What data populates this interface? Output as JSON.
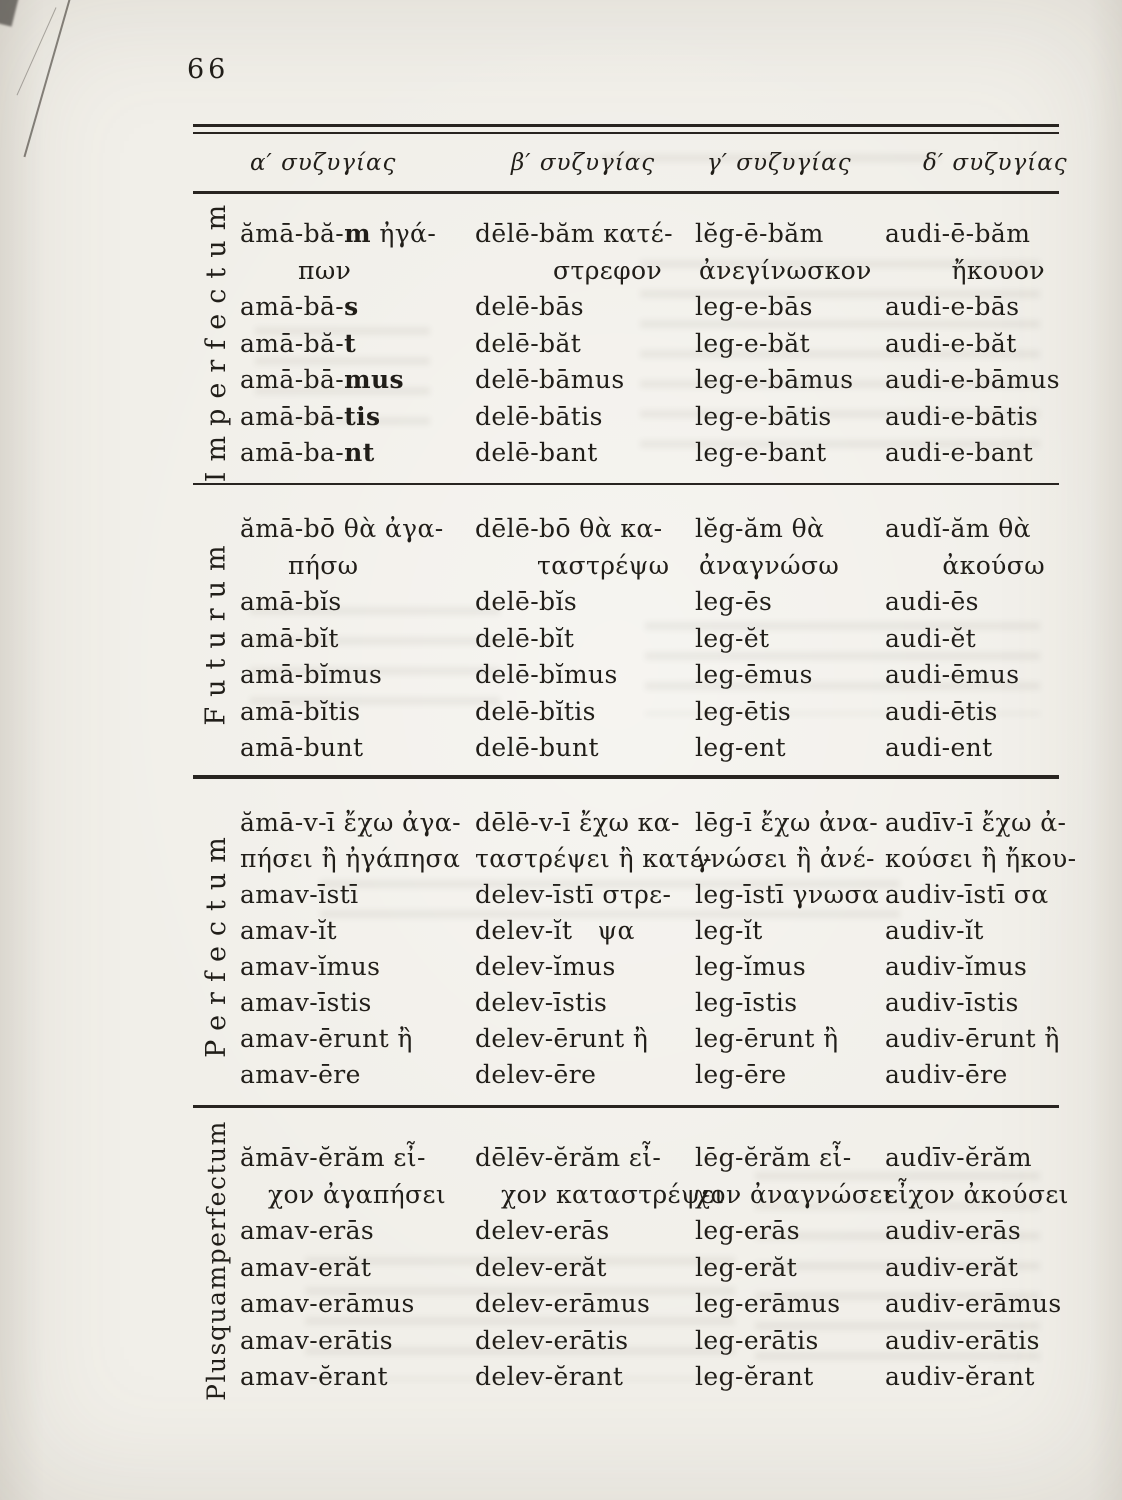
{
  "page": {
    "number": "66"
  },
  "colors": {
    "paper": "#f1efe9",
    "ink": "#211e19",
    "rule": "#282420"
  },
  "table": {
    "headers": [
      "α′ συζυγίας",
      "β′ συζυγίας",
      "γ′ συζυγίας",
      "δ′ συζυγίας"
    ],
    "sections": [
      {
        "label": "Imperfectum",
        "rows": [
          {
            "cells": [
              [
                "ămā-bă-**m** ἠγά-",
                "πων"
              ],
              [
                "dēlē-băm κατέ-",
                "στρεφον"
              ],
              [
                "lĕg-ē-băm",
                "ἀνεγίνωσκον"
              ],
              [
                "audi-ē-băm",
                "ἤκουον"
              ]
            ]
          },
          {
            "cells": [
              [
                "amā-bā-**s**"
              ],
              [
                "delē-bās"
              ],
              [
                "leg-e-bās"
              ],
              [
                "audi-e-bās"
              ]
            ]
          },
          {
            "cells": [
              [
                "amā-bă-**t**"
              ],
              [
                "delē-băt"
              ],
              [
                "leg-e-băt"
              ],
              [
                "audi-e-băt"
              ]
            ]
          },
          {
            "cells": [
              [
                "amā-bā-**mus**"
              ],
              [
                "delē-bāmus"
              ],
              [
                "leg-e-bāmus"
              ],
              [
                "audi-e-bāmus"
              ]
            ]
          },
          {
            "cells": [
              [
                "amā-bā-**tis**"
              ],
              [
                "delē-bātis"
              ],
              [
                "leg-e-bātis"
              ],
              [
                "audi-e-bātis"
              ]
            ]
          },
          {
            "cells": [
              [
                "amā-ba-**nt**"
              ],
              [
                "delē-bant"
              ],
              [
                "leg-e-bant"
              ],
              [
                "audi-e-bant"
              ]
            ]
          }
        ]
      },
      {
        "label": "Futurum",
        "rows": [
          {
            "cells": [
              [
                "ămā-bō θὰ ἀγα-",
                "πήσω"
              ],
              [
                "dēlē-bō θὰ κα-",
                "ταστρέψω"
              ],
              [
                "lĕg-ăm θὰ",
                "ἀναγνώσω"
              ],
              [
                "audĭ-ăm θὰ",
                "ἀκούσω"
              ]
            ]
          },
          {
            "cells": [
              [
                "amā-bĭs"
              ],
              [
                "delē-bĭs"
              ],
              [
                "leg-ēs"
              ],
              [
                "audi-ēs"
              ]
            ]
          },
          {
            "cells": [
              [
                "amā-bĭt"
              ],
              [
                "delē-bĭt"
              ],
              [
                "leg-ĕt"
              ],
              [
                "audi-ĕt"
              ]
            ]
          },
          {
            "cells": [
              [
                "amā-bĭmus"
              ],
              [
                "delē-bĭmus"
              ],
              [
                "leg-ēmus"
              ],
              [
                "audi-ēmus"
              ]
            ]
          },
          {
            "cells": [
              [
                "amā-bĭtis"
              ],
              [
                "delē-bĭtis"
              ],
              [
                "leg-ētis"
              ],
              [
                "audi-ētis"
              ]
            ]
          },
          {
            "cells": [
              [
                "amā-bunt"
              ],
              [
                "delē-bunt"
              ],
              [
                "leg-ent"
              ],
              [
                "audi-ent"
              ]
            ]
          }
        ]
      },
      {
        "label": "Perfectum",
        "rows": [
          {
            "cells": [
              [
                "ămā-v-ī ἔχω ἀγα-",
                "πήσει ἢ ἠγάπησα"
              ],
              [
                "dēlē-v-ī ἔχω κα-",
                "ταστρέψει ἢ κατέ-"
              ],
              [
                "lēg-ī ἔχω ἀνα-",
                "γνώσει ἢ ἀνέ-"
              ],
              [
                "audīv-ī ἔχω ἀ-",
                "κούσει ἢ ἤκου-"
              ]
            ]
          },
          {
            "cells": [
              [
                "amav-īstī"
              ],
              [
                "delev-īstī στρε-"
              ],
              [
                "leg-īstī γνωσα"
              ],
              [
                "audiv-īstī σα"
              ]
            ]
          },
          {
            "cells": [
              [
                "amav-ĭt"
              ],
              [
                "delev-ĭt   ψα"
              ],
              [
                "leg-ĭt"
              ],
              [
                "audiv-ĭt"
              ]
            ]
          },
          {
            "cells": [
              [
                "amav-ĭmus"
              ],
              [
                "delev-ĭmus"
              ],
              [
                "leg-ĭmus"
              ],
              [
                "audiv-ĭmus"
              ]
            ]
          },
          {
            "cells": [
              [
                "amav-īstis"
              ],
              [
                "delev-īstis"
              ],
              [
                "leg-īstis"
              ],
              [
                "audiv-īstis"
              ]
            ]
          },
          {
            "cells": [
              [
                "amav-ērunt ἢ"
              ],
              [
                "delev-ērunt ἢ"
              ],
              [
                "leg-ērunt ἢ"
              ],
              [
                "audiv-ērunt ἢ"
              ]
            ]
          },
          {
            "cells": [
              [
                "amav-ēre"
              ],
              [
                "delev-ēre"
              ],
              [
                "leg-ēre"
              ],
              [
                "audiv-ēre"
              ]
            ]
          }
        ]
      },
      {
        "label": "Plusquamperfectum",
        "rows": [
          {
            "cells": [
              [
                "ămāv-ĕrăm εἶ-",
                "χον ἀγαπήσει"
              ],
              [
                "dēlēv-ĕrăm εἶ-",
                "χον καταστρέψει"
              ],
              [
                "lēg-ĕrăm εἶ-",
                "χον ἀναγνώσει"
              ],
              [
                "audīv-ĕrăm",
                "εἶχον ἀκούσει"
              ]
            ]
          },
          {
            "cells": [
              [
                "amav-erās"
              ],
              [
                "delev-erās"
              ],
              [
                "leg-erās"
              ],
              [
                "audiv-erās"
              ]
            ]
          },
          {
            "cells": [
              [
                "amav-erăt"
              ],
              [
                "delev-erăt"
              ],
              [
                "leg-erăt"
              ],
              [
                "audiv-erăt"
              ]
            ]
          },
          {
            "cells": [
              [
                "amav-erāmus"
              ],
              [
                "delev-erāmus"
              ],
              [
                "leg-erāmus"
              ],
              [
                "audiv-erāmus"
              ]
            ]
          },
          {
            "cells": [
              [
                "amav-erātis"
              ],
              [
                "delev-erātis"
              ],
              [
                "leg-erātis"
              ],
              [
                "audiv-erātis"
              ]
            ]
          },
          {
            "cells": [
              [
                "amav-ĕrant"
              ],
              [
                "delev-ĕrant"
              ],
              [
                "leg-ĕrant"
              ],
              [
                "audiv-ĕrant"
              ]
            ]
          }
        ]
      }
    ]
  }
}
